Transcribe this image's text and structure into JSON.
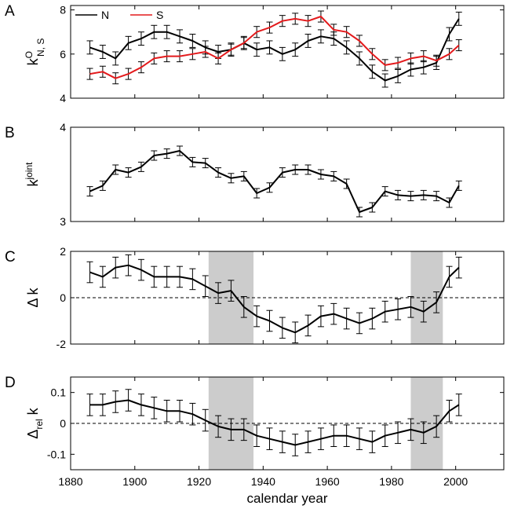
{
  "chart_data": [
    {
      "type": "line",
      "panel_label": "A",
      "ylabel": {
        "base": "k",
        "sup": "O",
        "sub": "N, S"
      },
      "xlim": [
        1880,
        2015
      ],
      "ylim": [
        4,
        8.2
      ],
      "yticks": [
        4,
        6,
        8
      ],
      "show_x_tick_labels": false,
      "error_bars": true,
      "legend": {
        "placement": "top-left",
        "entries": [
          "N",
          "S"
        ]
      },
      "series": [
        {
          "name": "N",
          "color": "#000000",
          "x": [
            1886,
            1890,
            1894,
            1898,
            1902,
            1906,
            1910,
            1914,
            1918,
            1922,
            1926,
            1930,
            1934,
            1938,
            1942,
            1946,
            1950,
            1954,
            1958,
            1962,
            1966,
            1970,
            1974,
            1978,
            1982,
            1986,
            1990,
            1994,
            1998,
            2001
          ],
          "y": [
            6.3,
            6.1,
            5.8,
            6.5,
            6.7,
            7.0,
            7.0,
            6.8,
            6.6,
            6.3,
            6.1,
            6.2,
            6.5,
            6.2,
            6.3,
            6.0,
            6.2,
            6.6,
            6.8,
            6.7,
            6.3,
            5.8,
            5.2,
            4.8,
            5.0,
            5.3,
            5.4,
            5.6,
            6.9,
            7.6
          ],
          "err": [
            0.3,
            0.3,
            0.3,
            0.3,
            0.3,
            0.3,
            0.3,
            0.3,
            0.3,
            0.3,
            0.3,
            0.3,
            0.3,
            0.3,
            0.3,
            0.3,
            0.3,
            0.3,
            0.3,
            0.3,
            0.3,
            0.3,
            0.3,
            0.3,
            0.3,
            0.3,
            0.3,
            0.3,
            0.3,
            0.3
          ]
        },
        {
          "name": "S",
          "color": "#e31a1c",
          "x": [
            1886,
            1890,
            1894,
            1898,
            1902,
            1906,
            1910,
            1914,
            1918,
            1922,
            1926,
            1930,
            1934,
            1938,
            1942,
            1946,
            1950,
            1954,
            1958,
            1962,
            1966,
            1970,
            1974,
            1978,
            1982,
            1986,
            1990,
            1994,
            1998,
            2001
          ],
          "y": [
            5.1,
            5.2,
            4.9,
            5.1,
            5.4,
            5.8,
            5.9,
            5.9,
            6.0,
            6.1,
            5.8,
            6.2,
            6.5,
            7.0,
            7.2,
            7.5,
            7.6,
            7.5,
            7.7,
            7.1,
            7.0,
            6.6,
            6.0,
            5.5,
            5.6,
            5.8,
            5.9,
            5.7,
            6.0,
            6.4
          ],
          "err": [
            0.25,
            0.25,
            0.25,
            0.25,
            0.25,
            0.25,
            0.25,
            0.25,
            0.25,
            0.25,
            0.25,
            0.25,
            0.25,
            0.25,
            0.25,
            0.25,
            0.25,
            0.25,
            0.25,
            0.25,
            0.25,
            0.25,
            0.25,
            0.25,
            0.25,
            0.25,
            0.25,
            0.25,
            0.25,
            0.25
          ]
        }
      ]
    },
    {
      "type": "line",
      "panel_label": "B",
      "ylabel": {
        "base": "k",
        "sup": "joint",
        "sub": ""
      },
      "xlim": [
        1880,
        2015
      ],
      "ylim": [
        3,
        4
      ],
      "yticks": [
        3,
        4
      ],
      "show_x_tick_labels": false,
      "error_bars": true,
      "series": [
        {
          "name": "",
          "color": "#000000",
          "x": [
            1886,
            1890,
            1894,
            1898,
            1902,
            1906,
            1910,
            1914,
            1918,
            1922,
            1926,
            1930,
            1934,
            1938,
            1942,
            1946,
            1950,
            1954,
            1958,
            1962,
            1966,
            1970,
            1974,
            1978,
            1982,
            1986,
            1990,
            1994,
            1998,
            2001
          ],
          "y": [
            3.32,
            3.38,
            3.55,
            3.52,
            3.58,
            3.7,
            3.72,
            3.75,
            3.63,
            3.62,
            3.52,
            3.46,
            3.48,
            3.3,
            3.36,
            3.52,
            3.55,
            3.55,
            3.5,
            3.48,
            3.4,
            3.1,
            3.15,
            3.32,
            3.28,
            3.27,
            3.28,
            3.27,
            3.2,
            3.38
          ],
          "err": [
            0.05,
            0.05,
            0.05,
            0.05,
            0.05,
            0.05,
            0.05,
            0.05,
            0.05,
            0.05,
            0.05,
            0.05,
            0.05,
            0.05,
            0.05,
            0.05,
            0.05,
            0.05,
            0.05,
            0.05,
            0.05,
            0.05,
            0.05,
            0.05,
            0.05,
            0.05,
            0.05,
            0.05,
            0.05,
            0.05
          ]
        }
      ]
    },
    {
      "type": "line",
      "panel_label": "C",
      "ylabel": {
        "base": "Δ k",
        "sup": "",
        "sub": ""
      },
      "xlim": [
        1880,
        2015
      ],
      "ylim": [
        -2,
        2
      ],
      "yticks": [
        -2,
        0,
        2
      ],
      "show_x_tick_labels": false,
      "zero_line": true,
      "error_bars": true,
      "shaded_x": [
        [
          1923,
          1937
        ],
        [
          1986,
          1996
        ]
      ],
      "series": [
        {
          "name": "",
          "color": "#000000",
          "x": [
            1886,
            1890,
            1894,
            1898,
            1902,
            1906,
            1910,
            1914,
            1918,
            1922,
            1926,
            1930,
            1934,
            1938,
            1942,
            1946,
            1950,
            1954,
            1958,
            1962,
            1966,
            1970,
            1974,
            1978,
            1982,
            1986,
            1990,
            1994,
            1998,
            2001
          ],
          "y": [
            1.1,
            0.9,
            1.3,
            1.4,
            1.2,
            0.9,
            0.9,
            0.9,
            0.8,
            0.5,
            0.2,
            0.3,
            -0.4,
            -0.8,
            -1.0,
            -1.3,
            -1.5,
            -1.2,
            -0.8,
            -0.7,
            -0.9,
            -1.1,
            -0.9,
            -0.6,
            -0.5,
            -0.4,
            -0.6,
            -0.2,
            0.9,
            1.3
          ],
          "err": [
            0.45,
            0.45,
            0.45,
            0.45,
            0.45,
            0.45,
            0.45,
            0.45,
            0.45,
            0.45,
            0.45,
            0.45,
            0.45,
            0.45,
            0.45,
            0.45,
            0.45,
            0.45,
            0.45,
            0.45,
            0.45,
            0.45,
            0.45,
            0.45,
            0.45,
            0.45,
            0.45,
            0.45,
            0.45,
            0.45
          ]
        }
      ]
    },
    {
      "type": "line",
      "panel_label": "D",
      "ylabel": {
        "base": "Δ",
        "sub": "rel",
        "tail": " k"
      },
      "xlabel": "calendar year",
      "xlim": [
        1880,
        2015
      ],
      "xticks": [
        1880,
        1900,
        1920,
        1940,
        1960,
        1980,
        2000
      ],
      "ylim": [
        -0.15,
        0.15
      ],
      "yticks": [
        -0.1,
        0,
        0.1
      ],
      "ytick_labels": [
        "-0.1",
        "0",
        "0.1"
      ],
      "show_x_tick_labels": true,
      "zero_line": true,
      "error_bars": true,
      "shaded_x": [
        [
          1923,
          1937
        ],
        [
          1986,
          1996
        ]
      ],
      "series": [
        {
          "name": "",
          "color": "#000000",
          "x": [
            1886,
            1890,
            1894,
            1898,
            1902,
            1906,
            1910,
            1914,
            1918,
            1922,
            1926,
            1930,
            1934,
            1938,
            1942,
            1946,
            1950,
            1954,
            1958,
            1962,
            1966,
            1970,
            1974,
            1978,
            1982,
            1986,
            1990,
            1994,
            1998,
            2001
          ],
          "y": [
            0.06,
            0.06,
            0.07,
            0.075,
            0.06,
            0.05,
            0.04,
            0.04,
            0.03,
            0.01,
            -0.01,
            -0.02,
            -0.02,
            -0.04,
            -0.05,
            -0.06,
            -0.07,
            -0.06,
            -0.05,
            -0.04,
            -0.04,
            -0.05,
            -0.06,
            -0.04,
            -0.03,
            -0.02,
            -0.03,
            -0.01,
            0.04,
            0.06
          ],
          "err": [
            0.035,
            0.035,
            0.035,
            0.035,
            0.035,
            0.035,
            0.035,
            0.035,
            0.035,
            0.035,
            0.035,
            0.035,
            0.035,
            0.035,
            0.035,
            0.035,
            0.035,
            0.035,
            0.035,
            0.035,
            0.035,
            0.035,
            0.035,
            0.035,
            0.035,
            0.035,
            0.035,
            0.035,
            0.035,
            0.035
          ]
        }
      ]
    }
  ]
}
